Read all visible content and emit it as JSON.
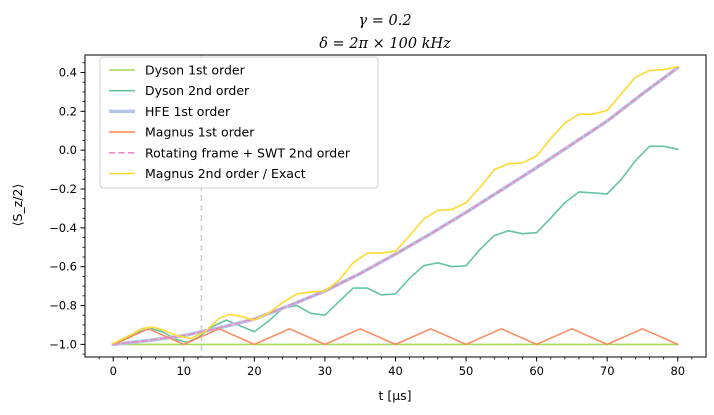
{
  "chart_data": {
    "type": "line",
    "title_line1": "γ = 0.2",
    "title_line2": "δ = 2π × 100 kHz",
    "xlabel": "t [μs]",
    "ylabel": "⟨S_z/2⟩",
    "xlim": [
      -4,
      84
    ],
    "ylim": [
      -1.065,
      0.49
    ],
    "xticks": [
      0,
      10,
      20,
      30,
      40,
      50,
      60,
      70,
      80
    ],
    "yticks": [
      -1.0,
      -0.8,
      -0.6,
      -0.4,
      -0.2,
      0.0,
      0.2,
      0.4
    ],
    "xtick_labels": [
      "0",
      "10",
      "20",
      "30",
      "40",
      "50",
      "60",
      "70",
      "80"
    ],
    "ytick_labels": [
      "−1.0",
      "−0.8",
      "−0.6",
      "−0.4",
      "−0.2",
      "0.0",
      "0.2",
      "0.4"
    ],
    "grid": false,
    "legend_position": "upper-left",
    "vline": {
      "x": 12.5,
      "color": "#cccccc",
      "style": "dashed"
    },
    "series": [
      {
        "name": "Dyson 1st order",
        "color": "#a6d854",
        "style": "solid",
        "x": [
          0,
          80
        ],
        "y": [
          -1.0,
          -1.0
        ]
      },
      {
        "name": "Dyson 2nd order",
        "color": "#66c2a5",
        "style": "solid",
        "x": [
          0,
          2,
          4,
          5.5,
          7,
          9,
          10.5,
          12,
          14,
          16,
          18,
          20,
          22,
          24,
          26,
          28,
          30,
          32,
          34,
          36,
          38,
          40,
          42,
          44,
          46,
          48,
          50,
          52,
          54,
          56,
          58,
          60,
          62,
          64,
          66,
          68,
          70,
          72,
          74,
          76,
          78,
          80
        ],
        "y": [
          -1.0,
          -0.97,
          -0.93,
          -0.92,
          -0.935,
          -0.975,
          -0.99,
          -0.965,
          -0.91,
          -0.875,
          -0.905,
          -0.935,
          -0.88,
          -0.815,
          -0.8,
          -0.84,
          -0.85,
          -0.78,
          -0.71,
          -0.71,
          -0.745,
          -0.74,
          -0.66,
          -0.595,
          -0.58,
          -0.6,
          -0.595,
          -0.51,
          -0.44,
          -0.415,
          -0.43,
          -0.425,
          -0.35,
          -0.27,
          -0.215,
          -0.22,
          -0.225,
          -0.15,
          -0.055,
          0.02,
          0.02,
          0.005
        ]
      },
      {
        "name": "HFE 1st order",
        "color": "#b3c6e4",
        "style": "thick",
        "x": [
          0,
          5,
          10,
          15,
          20,
          25,
          30,
          35,
          40,
          45,
          50,
          55,
          60,
          65,
          70,
          75,
          80
        ],
        "y": [
          -1.0,
          -0.98,
          -0.955,
          -0.915,
          -0.87,
          -0.8,
          -0.725,
          -0.635,
          -0.535,
          -0.43,
          -0.32,
          -0.205,
          -0.09,
          0.03,
          0.15,
          0.29,
          0.425
        ]
      },
      {
        "name": "Magnus 1st order",
        "color": "#fc8d62",
        "style": "solid",
        "x": [
          0,
          5,
          10,
          15,
          20,
          25,
          30,
          35,
          40,
          45,
          50,
          55,
          60,
          65,
          70,
          75,
          80
        ],
        "y": [
          -1.0,
          -0.92,
          -1.0,
          -0.92,
          -1.0,
          -0.92,
          -1.0,
          -0.92,
          -1.0,
          -0.92,
          -1.0,
          -0.92,
          -1.0,
          -0.92,
          -1.0,
          -0.92,
          -1.0
        ]
      },
      {
        "name": "Rotating frame + SWT 2nd order",
        "color": "#e78ac3",
        "style": "dashed",
        "x": [
          0,
          5,
          10,
          15,
          20,
          25,
          30,
          35,
          40,
          45,
          50,
          55,
          60,
          65,
          70,
          75,
          80
        ],
        "y": [
          -1.0,
          -0.98,
          -0.955,
          -0.915,
          -0.87,
          -0.8,
          -0.725,
          -0.635,
          -0.535,
          -0.43,
          -0.32,
          -0.205,
          -0.09,
          0.03,
          0.15,
          0.29,
          0.425
        ]
      },
      {
        "name": "Magnus 2nd order / Exact",
        "color": "#ffd92f",
        "style": "solid",
        "x": [
          0,
          2,
          4,
          5.5,
          7,
          9,
          11,
          13,
          15,
          16.5,
          18,
          20,
          22,
          24,
          26,
          28,
          30,
          32,
          34,
          36,
          38,
          40,
          42,
          44,
          46,
          48,
          50,
          52,
          54,
          56,
          58,
          60,
          62,
          64,
          66,
          68,
          70,
          72,
          74,
          76,
          78,
          80
        ],
        "y": [
          -0.995,
          -0.96,
          -0.92,
          -0.91,
          -0.925,
          -0.955,
          -0.97,
          -0.935,
          -0.865,
          -0.845,
          -0.855,
          -0.875,
          -0.84,
          -0.785,
          -0.74,
          -0.73,
          -0.725,
          -0.67,
          -0.58,
          -0.53,
          -0.53,
          -0.52,
          -0.44,
          -0.355,
          -0.31,
          -0.305,
          -0.27,
          -0.19,
          -0.1,
          -0.07,
          -0.065,
          -0.03,
          0.06,
          0.14,
          0.185,
          0.185,
          0.205,
          0.29,
          0.375,
          0.41,
          0.415,
          0.43
        ]
      }
    ]
  }
}
